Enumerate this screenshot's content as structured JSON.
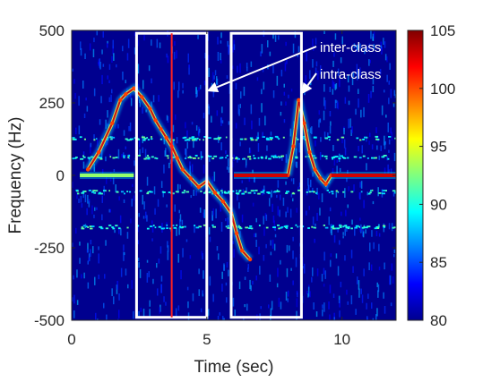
{
  "chart_data": {
    "type": "heatmap",
    "title": "",
    "xlabel": "Time (sec)",
    "ylabel": "Frequency (Hz)",
    "xlim": [
      0,
      12
    ],
    "ylim": [
      -500,
      500
    ],
    "xticks": [
      0,
      5,
      10
    ],
    "xtick_labels": [
      "0",
      "5",
      "10"
    ],
    "yticks": [
      500,
      250,
      0,
      -250,
      -500
    ],
    "ytick_labels": [
      "500",
      "250",
      "0",
      "-250",
      "-500"
    ],
    "colorbar": {
      "range": [
        80,
        105
      ],
      "ticks": [
        105,
        100,
        95,
        90,
        85,
        80
      ],
      "tick_labels": [
        "105",
        "100",
        "95",
        "90",
        "85",
        "80"
      ],
      "colormap": "jet"
    },
    "colors": {
      "background_dark_blue": "#00008f",
      "box": "#ffffff",
      "marker_line": "#ff2020",
      "annotation_text": "#ffffff"
    },
    "zero_line_segments": [
      {
        "x": [
          0.3,
          2.3
        ],
        "intensity": 93
      },
      {
        "x": [
          6.0,
          8.0
        ],
        "intensity": 103
      },
      {
        "x": [
          9.6,
          12.0
        ],
        "intensity": 103
      }
    ],
    "ridges": [
      {
        "name": "",
        "x": [
          0.6,
          1.0,
          1.5,
          1.8,
          2.0,
          2.3,
          2.6,
          2.9,
          3.1,
          3.3,
          3.5,
          3.7,
          3.9,
          4.1,
          4.4,
          4.7,
          5.0,
          5.3,
          5.6,
          5.9,
          6.1,
          6.3,
          6.6
        ],
        "y": [
          20,
          80,
          180,
          260,
          280,
          300,
          270,
          230,
          190,
          160,
          130,
          100,
          60,
          20,
          -10,
          -40,
          -20,
          -60,
          -90,
          -130,
          -200,
          -260,
          -290
        ]
      },
      {
        "name": "",
        "x": [
          8.0,
          8.2,
          8.4,
          8.6,
          8.8,
          9.0,
          9.2,
          9.4,
          9.6
        ],
        "y": [
          0,
          100,
          260,
          180,
          80,
          20,
          -10,
          -30,
          0
        ]
      }
    ],
    "vertical_marker": {
      "x": 3.7
    },
    "boxes": [
      {
        "x": [
          2.4,
          5.0
        ],
        "y": [
          -490,
          490
        ]
      },
      {
        "x": [
          5.9,
          8.5
        ],
        "y": [
          -490,
          490
        ]
      }
    ],
    "annotations": [
      {
        "text": "inter-class",
        "target": {
          "x": 5.0,
          "y": 290
        }
      },
      {
        "text": "intra-class",
        "target": {
          "x": 8.5,
          "y": 280
        }
      }
    ]
  }
}
